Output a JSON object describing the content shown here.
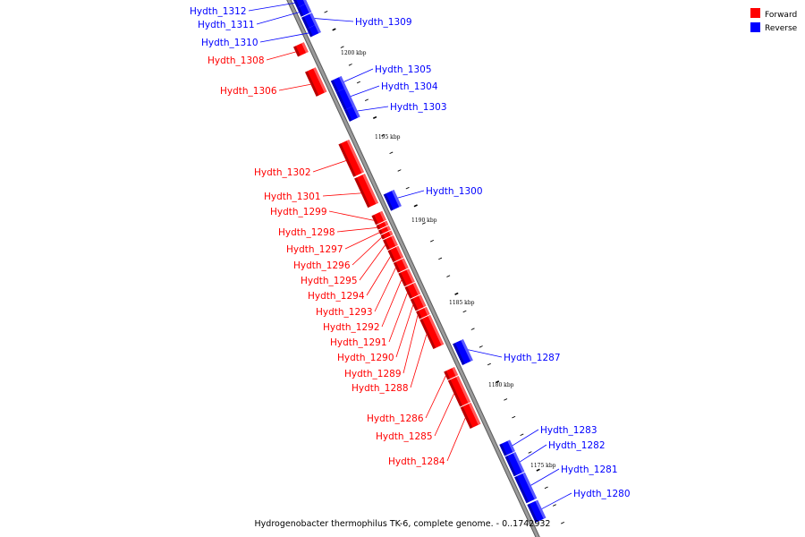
{
  "colors": {
    "forward": "#ff0000",
    "reverse": "#0000ff",
    "backbone": "#9a9a9a"
  },
  "legend": [
    {
      "label": "Forward",
      "color": "#ff0000"
    },
    {
      "label": "Reverse",
      "color": "#0000ff"
    }
  ],
  "caption": "Hydrogenobacter thermophilus TK-6, complete genome. - 0..1742932",
  "tick_labels": [
    "1200 kbp",
    "1195 kbp",
    "1190 kbp",
    "1185 kbp",
    "1180 kbp",
    "1175 kbp"
  ],
  "genes": [
    {
      "label": "Hydth_1312",
      "strand": "reverse"
    },
    {
      "label": "Hydth_1311",
      "strand": "reverse"
    },
    {
      "label": "Hydth_1309",
      "strand": "reverse"
    },
    {
      "label": "Hydth_1310",
      "strand": "reverse"
    },
    {
      "label": "Hydth_1308",
      "strand": "forward"
    },
    {
      "label": "Hydth_1305",
      "strand": "reverse"
    },
    {
      "label": "Hydth_1304",
      "strand": "reverse"
    },
    {
      "label": "Hydth_1306",
      "strand": "forward"
    },
    {
      "label": "Hydth_1303",
      "strand": "reverse"
    },
    {
      "label": "Hydth_1302",
      "strand": "forward"
    },
    {
      "label": "Hydth_1300",
      "strand": "reverse"
    },
    {
      "label": "Hydth_1301",
      "strand": "forward"
    },
    {
      "label": "Hydth_1299",
      "strand": "forward"
    },
    {
      "label": "Hydth_1298",
      "strand": "forward"
    },
    {
      "label": "Hydth_1297",
      "strand": "forward"
    },
    {
      "label": "Hydth_1296",
      "strand": "forward"
    },
    {
      "label": "Hydth_1295",
      "strand": "forward"
    },
    {
      "label": "Hydth_1294",
      "strand": "forward"
    },
    {
      "label": "Hydth_1293",
      "strand": "forward"
    },
    {
      "label": "Hydth_1292",
      "strand": "forward"
    },
    {
      "label": "Hydth_1291",
      "strand": "forward"
    },
    {
      "label": "Hydth_1290",
      "strand": "forward"
    },
    {
      "label": "Hydth_1289",
      "strand": "forward"
    },
    {
      "label": "Hydth_1288",
      "strand": "forward"
    },
    {
      "label": "Hydth_1287",
      "strand": "reverse"
    },
    {
      "label": "Hydth_1286",
      "strand": "forward"
    },
    {
      "label": "Hydth_1285",
      "strand": "forward"
    },
    {
      "label": "Hydth_1284",
      "strand": "forward"
    },
    {
      "label": "Hydth_1283",
      "strand": "reverse"
    },
    {
      "label": "Hydth_1282",
      "strand": "reverse"
    },
    {
      "label": "Hydth_1281",
      "strand": "reverse"
    },
    {
      "label": "Hydth_1280",
      "strand": "reverse"
    }
  ]
}
